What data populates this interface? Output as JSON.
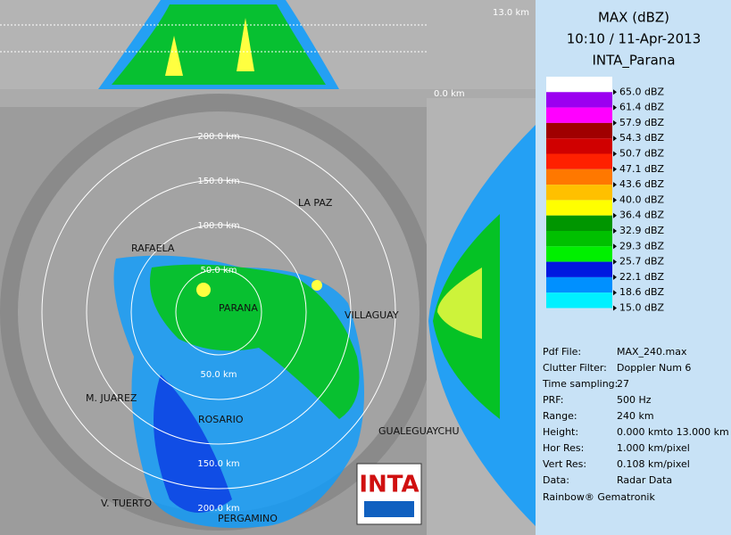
{
  "header": {
    "title": "MAX (dBZ)",
    "time": "10:10 / 11-Apr-2013",
    "station": "INTA_Parana"
  },
  "legend": [
    {
      "label": "65.0 dBZ",
      "color": "#ffffff"
    },
    {
      "label": "61.4 dBZ",
      "color": "#9b00f0"
    },
    {
      "label": "57.9 dBZ",
      "color": "#ff00ff"
    },
    {
      "label": "54.3 dBZ",
      "color": "#a00000"
    },
    {
      "label": "50.7 dBZ",
      "color": "#d00000"
    },
    {
      "label": "47.1 dBZ",
      "color": "#ff2000"
    },
    {
      "label": "43.6 dBZ",
      "color": "#ff7800"
    },
    {
      "label": "40.0 dBZ",
      "color": "#ffc000"
    },
    {
      "label": "36.4 dBZ",
      "color": "#ffff00"
    },
    {
      "label": "32.9 dBZ",
      "color": "#009600"
    },
    {
      "label": "29.3 dBZ",
      "color": "#00c000"
    },
    {
      "label": "25.7 dBZ",
      "color": "#00f000"
    },
    {
      "label": "22.1 dBZ",
      "color": "#0018e0"
    },
    {
      "label": "18.6 dBZ",
      "color": "#0090ff"
    },
    {
      "label": "15.0 dBZ",
      "color": "#00f0ff"
    }
  ],
  "info": [
    {
      "label": "Pdf File:",
      "value": "MAX_240.max"
    },
    {
      "label": "Clutter Filter:",
      "value": "Doppler Num 6"
    },
    {
      "label": "Time sampling:",
      "value": "27"
    },
    {
      "label": "PRF:",
      "value": "500 Hz"
    },
    {
      "label": "Range:",
      "value": "240 km"
    },
    {
      "label": "Height:",
      "value": "0.000 kmto 13.000 km"
    },
    {
      "label": "Hor Res:",
      "value": "1.000 km/pixel"
    },
    {
      "label": "Vert Res:",
      "value": "0.108 km/pixel"
    },
    {
      "label": "Data:",
      "value": "Radar Data"
    }
  ],
  "footer": "Rainbow® Gematronik",
  "heights": {
    "top": "13.0 km",
    "bottom": "0.0 km"
  },
  "rings": [
    "50.0 km",
    "100.0 km",
    "150.0 km",
    "200.0 km"
  ],
  "places": [
    "LA PAZ",
    "RAFAELA",
    "PARANA",
    "VILLAGUAY",
    "M. JUAREZ",
    "ROSARIO",
    "GUALEGUAYCHU",
    "V. TUERTO",
    "PERGAMINO"
  ],
  "logo": "INTA"
}
